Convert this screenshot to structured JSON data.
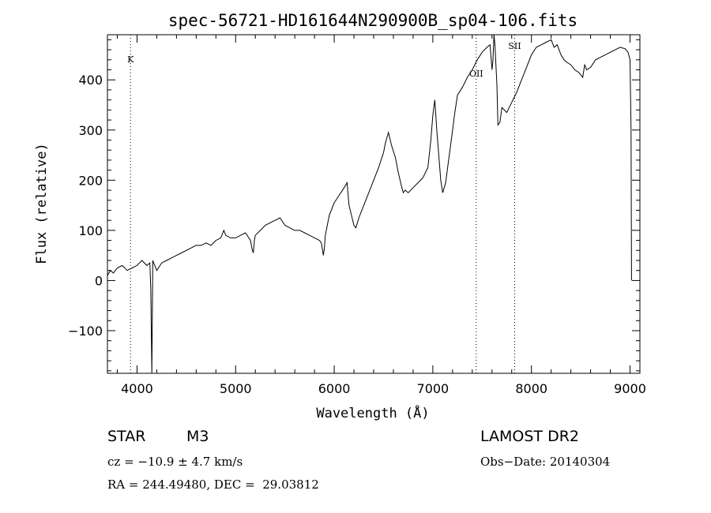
{
  "chart_data": {
    "type": "line",
    "title": "spec-56721-HD161644N290900B_sp04-106.fits",
    "xlabel": "Wavelength (Å)",
    "ylabel": "Flux (relative)",
    "xlim": [
      3700,
      9100
    ],
    "ylim": [
      -185,
      490
    ],
    "xticks": [
      4000,
      5000,
      6000,
      7000,
      8000,
      9000
    ],
    "yticks": [
      -100,
      0,
      100,
      200,
      300,
      400
    ],
    "grid": false,
    "series": [
      {
        "x": [
          3700,
          3730,
          3760,
          3800,
          3850,
          3900,
          3950,
          4000,
          4050,
          4100,
          4130,
          4140,
          4150,
          4160,
          4180,
          4200,
          4250,
          4300,
          4350,
          4400,
          4450,
          4500,
          4550,
          4600,
          4650,
          4700,
          4750,
          4800,
          4850,
          4880,
          4900,
          4950,
          5000,
          5050,
          5100,
          5150,
          5170,
          5180,
          5190,
          5200,
          5250,
          5300,
          5350,
          5400,
          5450,
          5500,
          5550,
          5600,
          5650,
          5700,
          5750,
          5800,
          5850,
          5870,
          5890,
          5900,
          5910,
          5930,
          5950,
          6000,
          6050,
          6100,
          6130,
          6150,
          6200,
          6220,
          6250,
          6300,
          6350,
          6400,
          6450,
          6500,
          6520,
          6550,
          6580,
          6620,
          6650,
          6680,
          6700,
          6720,
          6750,
          6800,
          6850,
          6900,
          6950,
          6980,
          7000,
          7020,
          7040,
          7060,
          7080,
          7100,
          7130,
          7150,
          7180,
          7200,
          7220,
          7250,
          7300,
          7350,
          7400,
          7450,
          7500,
          7550,
          7580,
          7600,
          7610,
          7620,
          7630,
          7650,
          7660,
          7680,
          7700,
          7750,
          7800,
          7850,
          7900,
          7950,
          8000,
          8050,
          8100,
          8150,
          8200,
          8230,
          8260,
          8300,
          8330,
          8360,
          8400,
          8440,
          8480,
          8500,
          8520,
          8540,
          8560,
          8600,
          8650,
          8700,
          8750,
          8800,
          8850,
          8900,
          8950,
          8980,
          9000,
          9010,
          9015
        ],
        "y": [
          10,
          20,
          15,
          25,
          30,
          20,
          25,
          30,
          40,
          30,
          35,
          -20,
          -185,
          40,
          30,
          20,
          35,
          40,
          45,
          50,
          55,
          60,
          65,
          70,
          70,
          75,
          70,
          80,
          85,
          100,
          90,
          85,
          85,
          90,
          95,
          80,
          60,
          55,
          80,
          90,
          100,
          110,
          115,
          120,
          125,
          110,
          105,
          100,
          100,
          95,
          90,
          85,
          80,
          75,
          50,
          65,
          90,
          110,
          130,
          155,
          170,
          185,
          195,
          150,
          110,
          105,
          125,
          150,
          175,
          200,
          225,
          255,
          275,
          295,
          270,
          245,
          215,
          190,
          175,
          180,
          175,
          185,
          195,
          205,
          225,
          280,
          330,
          360,
          300,
          250,
          200,
          175,
          195,
          225,
          270,
          300,
          330,
          370,
          385,
          405,
          420,
          440,
          455,
          465,
          470,
          420,
          440,
          490,
          470,
          390,
          310,
          315,
          345,
          335,
          355,
          375,
          400,
          425,
          450,
          465,
          470,
          475,
          480,
          465,
          470,
          450,
          440,
          435,
          430,
          420,
          415,
          410,
          405,
          430,
          420,
          425,
          440,
          445,
          450,
          455,
          460,
          465,
          462,
          455,
          440,
          300,
          0
        ],
        "color": "#000000"
      }
    ],
    "annotations": [
      {
        "label": "K",
        "x": 3934
      },
      {
        "label": "OII",
        "x": 7440
      },
      {
        "label": "SII",
        "x": 7830
      }
    ]
  },
  "info": {
    "object_type": "STAR",
    "subclass": "M3",
    "survey": "LAMOST DR2",
    "cz": "cz = −10.9 ± 4.7 km/s",
    "obs_date": "Obs−Date: 20140304",
    "coords": "RA = 244.49480, DEC =  29.03812"
  }
}
